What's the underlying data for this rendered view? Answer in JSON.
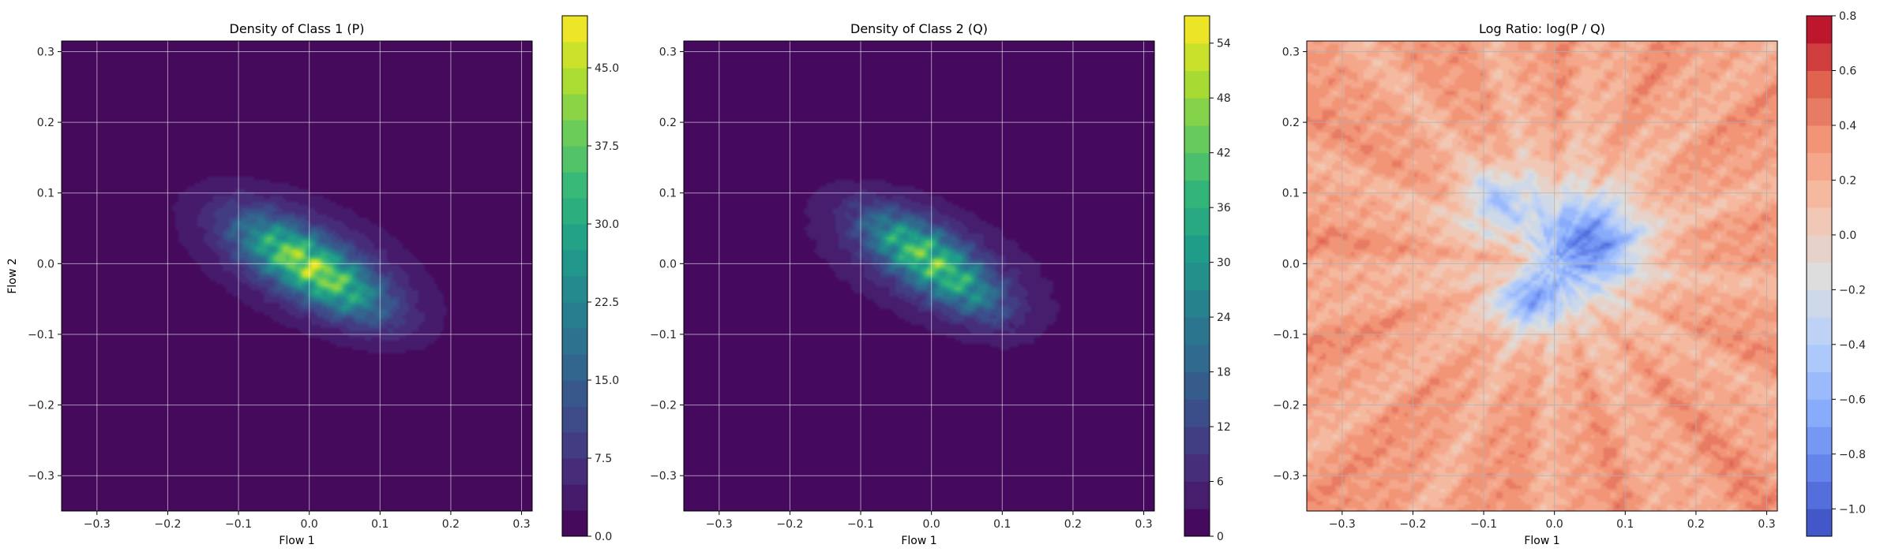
{
  "chart_data": [
    {
      "type": "heatmap",
      "title": "Density of Class 1 (P)",
      "xlabel": "Flow 1",
      "ylabel": "Flow 2",
      "xlim": [
        -0.35,
        0.315
      ],
      "ylim": [
        -0.35,
        0.315
      ],
      "xticks": [
        -0.3,
        -0.2,
        -0.1,
        0.0,
        0.1,
        0.2,
        0.3
      ],
      "xtick_labels": [
        "−0.3",
        "−0.2",
        "−0.1",
        "0.0",
        "0.1",
        "0.2",
        "0.3"
      ],
      "yticks": [
        -0.3,
        -0.2,
        -0.1,
        0.0,
        0.1,
        0.2,
        0.3
      ],
      "ytick_labels": [
        "−0.3",
        "−0.2",
        "−0.1",
        "0.0",
        "0.1",
        "0.2",
        "0.3"
      ],
      "grid": true,
      "colormap": "viridis",
      "colorbar": {
        "min": 0,
        "max": 50,
        "levels": 20,
        "ticks": [
          0,
          7.5,
          15,
          22.5,
          30,
          37.5,
          45
        ],
        "tick_labels": [
          "0.0",
          "7.5",
          "15.0",
          "22.5",
          "30.0",
          "37.5",
          "45.0"
        ]
      },
      "density": {
        "kind": "gaussian-mixture",
        "background_value": 0,
        "components": [
          {
            "center": [
              -0.03,
              0.015
            ],
            "sigma": [
              0.05,
              0.035
            ],
            "corr": -0.6,
            "peak": 22
          },
          {
            "center": [
              0.04,
              -0.03
            ],
            "sigma": [
              0.05,
              0.035
            ],
            "corr": -0.6,
            "peak": 20
          },
          {
            "center": [
              0.0,
              0.0
            ],
            "sigma": [
              0.11,
              0.07
            ],
            "corr": -0.55,
            "peak": 11
          }
        ],
        "texture_amplitude": 0.25
      }
    },
    {
      "type": "heatmap",
      "title": "Density of Class 2 (Q)",
      "xlabel": "Flow 1",
      "ylabel": "",
      "xlim": [
        -0.35,
        0.315
      ],
      "ylim": [
        -0.35,
        0.315
      ],
      "xticks": [
        -0.3,
        -0.2,
        -0.1,
        0.0,
        0.1,
        0.2,
        0.3
      ],
      "xtick_labels": [
        "−0.3",
        "−0.2",
        "−0.1",
        "0.0",
        "0.1",
        "0.2",
        "0.3"
      ],
      "yticks": [
        -0.3,
        -0.2,
        -0.1,
        0.0,
        0.1,
        0.2,
        0.3
      ],
      "ytick_labels": [
        "−0.3",
        "−0.2",
        "−0.1",
        "0.0",
        "0.1",
        "0.2",
        "0.3"
      ],
      "grid": true,
      "colormap": "viridis",
      "colorbar": {
        "min": 0,
        "max": 57,
        "levels": 19,
        "ticks": [
          0,
          6,
          12,
          18,
          24,
          30,
          36,
          42,
          48,
          54
        ],
        "tick_labels": [
          "0",
          "6",
          "12",
          "18",
          "24",
          "30",
          "36",
          "42",
          "48",
          "54"
        ]
      },
      "density": {
        "kind": "gaussian-mixture",
        "background_value": 0,
        "components": [
          {
            "center": [
              0.0,
              0.005
            ],
            "sigma": [
              0.04,
              0.035
            ],
            "corr": -0.5,
            "peak": 26
          },
          {
            "center": [
              -0.06,
              0.04
            ],
            "sigma": [
              0.035,
              0.03
            ],
            "corr": -0.5,
            "peak": 13
          },
          {
            "center": [
              0.06,
              -0.04
            ],
            "sigma": [
              0.035,
              0.03
            ],
            "corr": -0.5,
            "peak": 13
          },
          {
            "center": [
              0.0,
              0.0
            ],
            "sigma": [
              0.11,
              0.07
            ],
            "corr": -0.55,
            "peak": 11
          }
        ],
        "texture_amplitude": 0.3
      }
    },
    {
      "type": "heatmap",
      "title": "Log Ratio: log(P / Q)",
      "xlabel": "Flow 1",
      "ylabel": "",
      "xlim": [
        -0.35,
        0.315
      ],
      "ylim": [
        -0.35,
        0.315
      ],
      "xticks": [
        -0.3,
        -0.2,
        -0.1,
        0.0,
        0.1,
        0.2,
        0.3
      ],
      "xtick_labels": [
        "−0.3",
        "−0.2",
        "−0.1",
        "0.0",
        "0.1",
        "0.2",
        "0.3"
      ],
      "yticks": [
        -0.3,
        -0.2,
        -0.1,
        0.0,
        0.1,
        0.2,
        0.3
      ],
      "ytick_labels": [
        "−0.3",
        "−0.2",
        "−0.1",
        "0.0",
        "0.1",
        "0.2",
        "0.3"
      ],
      "grid": true,
      "colormap": "coolwarm",
      "colorbar": {
        "min": -1.1,
        "max": 0.8,
        "levels": 19,
        "ticks": [
          -1.0,
          -0.8,
          -0.6,
          -0.4,
          -0.2,
          0.0,
          0.2,
          0.4,
          0.6,
          0.8
        ],
        "tick_labels": [
          "−1.0",
          "−0.8",
          "−0.6",
          "−0.4",
          "−0.2",
          "0.0",
          "0.2",
          "0.4",
          "0.6",
          "0.8"
        ]
      },
      "density": {
        "kind": "log-ratio",
        "background_value": 0.28,
        "components": [
          {
            "center": [
              0.05,
              0.03
            ],
            "sigma": [
              0.05,
              0.045
            ],
            "corr": 0.0,
            "peak": -0.85
          },
          {
            "center": [
              -0.035,
              -0.05
            ],
            "sigma": [
              0.035,
              0.03
            ],
            "corr": 0.0,
            "peak": -0.7
          },
          {
            "center": [
              -0.08,
              0.09
            ],
            "sigma": [
              0.035,
              0.03
            ],
            "corr": 0.0,
            "peak": -0.5
          },
          {
            "center": [
              0.0,
              0.02
            ],
            "sigma": [
              0.12,
              0.11
            ],
            "corr": 0.0,
            "peak": -0.3
          },
          {
            "center": [
              -0.06,
              0.0
            ],
            "sigma": [
              0.03,
              0.025
            ],
            "corr": 0.0,
            "peak": 0.25
          }
        ],
        "texture_amplitude": 0.12
      }
    }
  ]
}
